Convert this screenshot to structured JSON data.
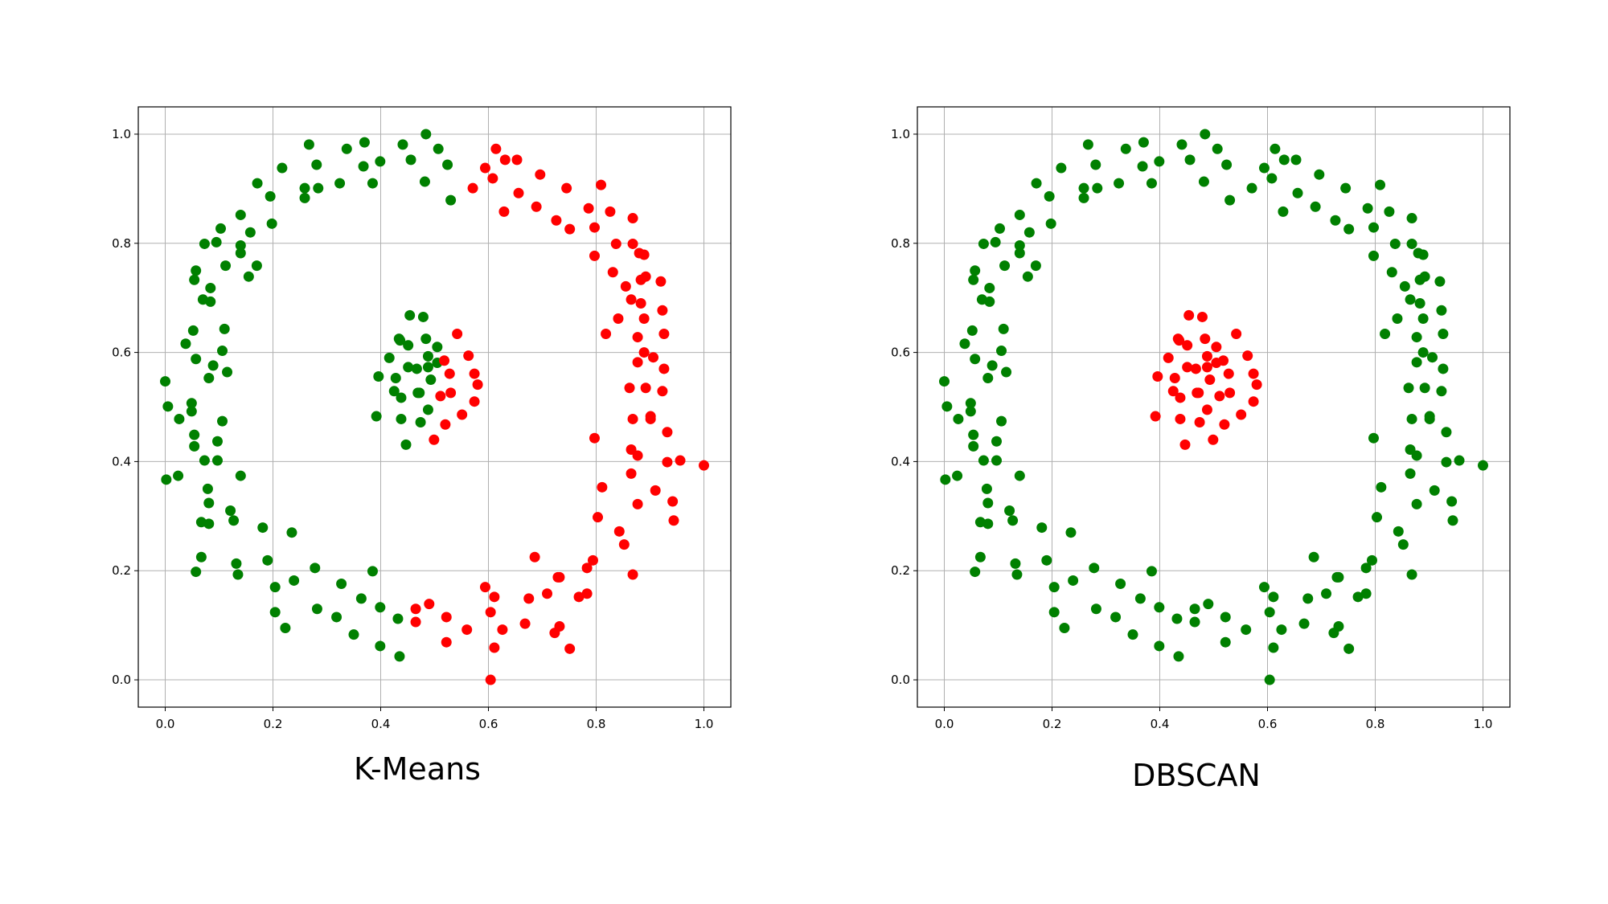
{
  "chart_data": [
    {
      "type": "scatter",
      "title": "K-Means",
      "label_key": "kmeans",
      "xlim": [
        -0.05,
        1.05
      ],
      "ylim": [
        -0.05,
        1.05
      ],
      "xticks": [
        "0.0",
        "0.2",
        "0.4",
        "0.6",
        "0.8",
        "1.0"
      ],
      "yticks": [
        "0.0",
        "0.2",
        "0.4",
        "0.6",
        "0.8",
        "1.0"
      ],
      "grid": true,
      "cluster_colors": [
        "#008000",
        "#ff0000"
      ]
    },
    {
      "type": "scatter",
      "title": "DBSCAN",
      "label_key": "dbscan",
      "xlim": [
        -0.05,
        1.05
      ],
      "ylim": [
        -0.05,
        1.05
      ],
      "xticks": [
        "0.0",
        "0.2",
        "0.4",
        "0.6",
        "0.8",
        "1.0"
      ],
      "yticks": [
        "0.0",
        "0.2",
        "0.4",
        "0.6",
        "0.8",
        "1.0"
      ],
      "grid": true,
      "cluster_colors": [
        "#008000",
        "#ff0000"
      ]
    }
  ],
  "points_fields": [
    "x",
    "y",
    "kmeans",
    "dbscan"
  ],
  "points": [
    [
      0.484,
      1.0,
      0,
      0
    ],
    [
      0.267,
      0.981,
      0,
      0
    ],
    [
      0.441,
      0.981,
      0,
      0
    ],
    [
      0.37,
      0.985,
      0,
      0
    ],
    [
      0.337,
      0.973,
      0,
      0
    ],
    [
      0.507,
      0.973,
      0,
      0
    ],
    [
      0.217,
      0.938,
      0,
      0
    ],
    [
      0.281,
      0.944,
      0,
      0
    ],
    [
      0.368,
      0.941,
      0,
      0
    ],
    [
      0.399,
      0.95,
      0,
      0
    ],
    [
      0.456,
      0.953,
      0,
      0
    ],
    [
      0.524,
      0.944,
      0,
      0
    ],
    [
      0.171,
      0.91,
      0,
      0
    ],
    [
      0.324,
      0.91,
      0,
      0
    ],
    [
      0.385,
      0.91,
      0,
      0
    ],
    [
      0.482,
      0.913,
      0,
      0
    ],
    [
      0.259,
      0.901,
      0,
      0
    ],
    [
      0.284,
      0.901,
      0,
      0
    ],
    [
      0.195,
      0.886,
      0,
      0
    ],
    [
      0.259,
      0.883,
      0,
      0
    ],
    [
      0.53,
      0.879,
      0,
      0
    ],
    [
      0.14,
      0.852,
      0,
      0
    ],
    [
      0.198,
      0.836,
      0,
      0
    ],
    [
      0.103,
      0.827,
      0,
      0
    ],
    [
      0.158,
      0.82,
      0,
      0
    ],
    [
      0.073,
      0.799,
      0,
      0
    ],
    [
      0.095,
      0.802,
      0,
      0
    ],
    [
      0.14,
      0.796,
      0,
      0
    ],
    [
      0.14,
      0.782,
      0,
      0
    ],
    [
      0.112,
      0.759,
      0,
      0
    ],
    [
      0.17,
      0.759,
      0,
      0
    ],
    [
      0.155,
      0.739,
      0,
      0
    ],
    [
      0.057,
      0.75,
      0,
      0
    ],
    [
      0.054,
      0.733,
      0,
      0
    ],
    [
      0.084,
      0.718,
      0,
      0
    ],
    [
      0.07,
      0.697,
      0,
      0
    ],
    [
      0.084,
      0.693,
      0,
      0
    ],
    [
      0.11,
      0.643,
      0,
      0
    ],
    [
      0.052,
      0.64,
      0,
      0
    ],
    [
      0.038,
      0.616,
      0,
      0
    ],
    [
      0.106,
      0.603,
      0,
      0
    ],
    [
      0.057,
      0.588,
      0,
      0
    ],
    [
      0.089,
      0.576,
      0,
      0
    ],
    [
      0.115,
      0.564,
      0,
      0
    ],
    [
      0.081,
      0.553,
      0,
      0
    ],
    [
      0.0,
      0.547,
      0,
      0
    ],
    [
      0.005,
      0.501,
      0,
      0
    ],
    [
      0.049,
      0.507,
      0,
      0
    ],
    [
      0.049,
      0.492,
      0,
      0
    ],
    [
      0.026,
      0.478,
      0,
      0
    ],
    [
      0.106,
      0.474,
      0,
      0
    ],
    [
      0.054,
      0.449,
      0,
      0
    ],
    [
      0.054,
      0.428,
      0,
      0
    ],
    [
      0.097,
      0.437,
      0,
      0
    ],
    [
      0.073,
      0.402,
      0,
      0
    ],
    [
      0.097,
      0.402,
      0,
      0
    ],
    [
      0.002,
      0.367,
      0,
      0
    ],
    [
      0.024,
      0.374,
      0,
      0
    ],
    [
      0.14,
      0.374,
      0,
      0
    ],
    [
      0.079,
      0.35,
      0,
      0
    ],
    [
      0.081,
      0.324,
      0,
      0
    ],
    [
      0.121,
      0.31,
      0,
      0
    ],
    [
      0.127,
      0.292,
      0,
      0
    ],
    [
      0.067,
      0.289,
      0,
      0
    ],
    [
      0.081,
      0.286,
      0,
      0
    ],
    [
      0.181,
      0.279,
      0,
      0
    ],
    [
      0.235,
      0.27,
      0,
      0
    ],
    [
      0.067,
      0.225,
      0,
      0
    ],
    [
      0.19,
      0.219,
      0,
      0
    ],
    [
      0.132,
      0.213,
      0,
      0
    ],
    [
      0.057,
      0.198,
      0,
      0
    ],
    [
      0.135,
      0.193,
      0,
      0
    ],
    [
      0.278,
      0.205,
      0,
      0
    ],
    [
      0.385,
      0.199,
      0,
      0
    ],
    [
      0.204,
      0.17,
      0,
      0
    ],
    [
      0.239,
      0.182,
      0,
      0
    ],
    [
      0.327,
      0.176,
      0,
      0
    ],
    [
      0.364,
      0.149,
      0,
      0
    ],
    [
      0.204,
      0.124,
      0,
      0
    ],
    [
      0.282,
      0.13,
      0,
      0
    ],
    [
      0.399,
      0.133,
      0,
      0
    ],
    [
      0.318,
      0.115,
      0,
      0
    ],
    [
      0.432,
      0.112,
      0,
      0
    ],
    [
      0.223,
      0.095,
      0,
      0
    ],
    [
      0.35,
      0.083,
      0,
      0
    ],
    [
      0.399,
      0.062,
      0,
      0
    ],
    [
      0.435,
      0.043,
      0,
      0
    ],
    [
      0.454,
      0.668,
      0,
      1
    ],
    [
      0.479,
      0.665,
      0,
      1
    ],
    [
      0.434,
      0.625,
      0,
      1
    ],
    [
      0.436,
      0.622,
      0,
      1
    ],
    [
      0.484,
      0.625,
      0,
      1
    ],
    [
      0.451,
      0.613,
      0,
      1
    ],
    [
      0.505,
      0.61,
      0,
      1
    ],
    [
      0.416,
      0.59,
      0,
      1
    ],
    [
      0.488,
      0.593,
      0,
      1
    ],
    [
      0.505,
      0.581,
      0,
      1
    ],
    [
      0.451,
      0.573,
      0,
      1
    ],
    [
      0.467,
      0.57,
      0,
      1
    ],
    [
      0.488,
      0.573,
      0,
      1
    ],
    [
      0.396,
      0.556,
      0,
      1
    ],
    [
      0.428,
      0.553,
      0,
      1
    ],
    [
      0.493,
      0.55,
      0,
      1
    ],
    [
      0.425,
      0.529,
      0,
      1
    ],
    [
      0.469,
      0.526,
      0,
      1
    ],
    [
      0.472,
      0.526,
      0,
      1
    ],
    [
      0.438,
      0.517,
      0,
      1
    ],
    [
      0.488,
      0.495,
      0,
      1
    ],
    [
      0.392,
      0.483,
      0,
      1
    ],
    [
      0.438,
      0.478,
      0,
      1
    ],
    [
      0.474,
      0.472,
      0,
      1
    ],
    [
      0.447,
      0.431,
      0,
      1
    ],
    [
      0.542,
      0.634,
      1,
      1
    ],
    [
      0.518,
      0.585,
      1,
      1
    ],
    [
      0.563,
      0.594,
      1,
      1
    ],
    [
      0.528,
      0.561,
      1,
      1
    ],
    [
      0.574,
      0.561,
      1,
      1
    ],
    [
      0.58,
      0.541,
      1,
      1
    ],
    [
      0.511,
      0.52,
      1,
      1
    ],
    [
      0.53,
      0.526,
      1,
      1
    ],
    [
      0.574,
      0.51,
      1,
      1
    ],
    [
      0.551,
      0.486,
      1,
      1
    ],
    [
      0.52,
      0.468,
      1,
      1
    ],
    [
      0.499,
      0.44,
      1,
      1
    ],
    [
      0.614,
      0.973,
      1,
      0
    ],
    [
      0.631,
      0.953,
      1,
      0
    ],
    [
      0.653,
      0.953,
      1,
      0
    ],
    [
      0.594,
      0.938,
      1,
      0
    ],
    [
      0.608,
      0.919,
      1,
      0
    ],
    [
      0.696,
      0.926,
      1,
      0
    ],
    [
      0.571,
      0.901,
      1,
      0
    ],
    [
      0.745,
      0.901,
      1,
      0
    ],
    [
      0.809,
      0.907,
      1,
      0
    ],
    [
      0.656,
      0.892,
      1,
      0
    ],
    [
      0.629,
      0.858,
      1,
      0
    ],
    [
      0.689,
      0.867,
      1,
      0
    ],
    [
      0.786,
      0.864,
      1,
      0
    ],
    [
      0.826,
      0.858,
      1,
      0
    ],
    [
      0.868,
      0.846,
      1,
      0
    ],
    [
      0.726,
      0.842,
      1,
      0
    ],
    [
      0.751,
      0.826,
      1,
      0
    ],
    [
      0.797,
      0.829,
      1,
      0
    ],
    [
      0.837,
      0.799,
      1,
      0
    ],
    [
      0.868,
      0.799,
      1,
      0
    ],
    [
      0.797,
      0.777,
      1,
      0
    ],
    [
      0.88,
      0.782,
      1,
      0
    ],
    [
      0.889,
      0.779,
      1,
      0
    ],
    [
      0.831,
      0.747,
      1,
      0
    ],
    [
      0.92,
      0.73,
      1,
      0
    ],
    [
      0.855,
      0.721,
      1,
      0
    ],
    [
      0.883,
      0.733,
      1,
      0
    ],
    [
      0.892,
      0.739,
      1,
      0
    ],
    [
      0.865,
      0.697,
      1,
      0
    ],
    [
      0.883,
      0.69,
      1,
      0
    ],
    [
      0.841,
      0.662,
      1,
      0
    ],
    [
      0.889,
      0.662,
      1,
      0
    ],
    [
      0.923,
      0.677,
      1,
      0
    ],
    [
      0.818,
      0.634,
      1,
      0
    ],
    [
      0.877,
      0.628,
      1,
      0
    ],
    [
      0.926,
      0.634,
      1,
      0
    ],
    [
      0.889,
      0.6,
      1,
      0
    ],
    [
      0.906,
      0.591,
      1,
      0
    ],
    [
      0.877,
      0.582,
      1,
      0
    ],
    [
      0.926,
      0.57,
      1,
      0
    ],
    [
      0.862,
      0.535,
      1,
      0
    ],
    [
      0.892,
      0.535,
      1,
      0
    ],
    [
      0.923,
      0.529,
      1,
      0
    ],
    [
      0.868,
      0.478,
      1,
      0
    ],
    [
      0.901,
      0.483,
      1,
      0
    ],
    [
      0.901,
      0.478,
      1,
      0
    ],
    [
      0.932,
      0.454,
      1,
      0
    ],
    [
      0.797,
      0.443,
      1,
      0
    ],
    [
      0.865,
      0.422,
      1,
      0
    ],
    [
      0.877,
      0.411,
      1,
      0
    ],
    [
      0.932,
      0.399,
      1,
      0
    ],
    [
      0.956,
      0.402,
      1,
      0
    ],
    [
      1.0,
      0.393,
      1,
      0
    ],
    [
      0.865,
      0.378,
      1,
      0
    ],
    [
      0.811,
      0.353,
      1,
      0
    ],
    [
      0.91,
      0.347,
      1,
      0
    ],
    [
      0.877,
      0.322,
      1,
      0
    ],
    [
      0.942,
      0.327,
      1,
      0
    ],
    [
      0.803,
      0.298,
      1,
      0
    ],
    [
      0.944,
      0.292,
      1,
      0
    ],
    [
      0.843,
      0.272,
      1,
      0
    ],
    [
      0.852,
      0.248,
      1,
      0
    ],
    [
      0.686,
      0.225,
      1,
      0
    ],
    [
      0.794,
      0.219,
      1,
      0
    ],
    [
      0.783,
      0.205,
      1,
      0
    ],
    [
      0.868,
      0.193,
      1,
      0
    ],
    [
      0.729,
      0.188,
      1,
      0
    ],
    [
      0.732,
      0.188,
      1,
      0
    ],
    [
      0.594,
      0.17,
      1,
      0
    ],
    [
      0.611,
      0.152,
      1,
      0
    ],
    [
      0.675,
      0.149,
      1,
      0
    ],
    [
      0.709,
      0.158,
      1,
      0
    ],
    [
      0.768,
      0.152,
      1,
      0
    ],
    [
      0.783,
      0.158,
      1,
      0
    ],
    [
      0.465,
      0.13,
      1,
      0
    ],
    [
      0.49,
      0.139,
      1,
      0
    ],
    [
      0.522,
      0.115,
      1,
      0
    ],
    [
      0.604,
      0.124,
      1,
      0
    ],
    [
      0.465,
      0.106,
      1,
      0
    ],
    [
      0.668,
      0.103,
      1,
      0
    ],
    [
      0.56,
      0.092,
      1,
      0
    ],
    [
      0.626,
      0.092,
      1,
      0
    ],
    [
      0.732,
      0.098,
      1,
      0
    ],
    [
      0.723,
      0.086,
      1,
      0
    ],
    [
      0.522,
      0.069,
      1,
      0
    ],
    [
      0.611,
      0.059,
      1,
      0
    ],
    [
      0.751,
      0.057,
      1,
      0
    ],
    [
      0.604,
      0.0,
      1,
      0
    ]
  ]
}
